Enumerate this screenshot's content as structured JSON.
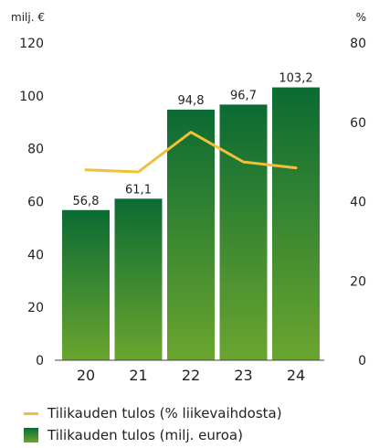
{
  "chart_data": {
    "type": "bar",
    "categories": [
      "20",
      "21",
      "22",
      "23",
      "24"
    ],
    "left_axis_label": "milj. €",
    "right_axis_label": "%",
    "left_ylim": [
      0,
      120
    ],
    "left_ticks": [
      0,
      20,
      40,
      60,
      80,
      100,
      120
    ],
    "right_ylim": [
      0,
      80
    ],
    "right_ticks": [
      0,
      20,
      40,
      60,
      80
    ],
    "series": [
      {
        "name": "Tilikauden tulos (milj. euroa)",
        "kind": "bar",
        "axis": "left",
        "values": [
          56.8,
          61.1,
          94.8,
          96.7,
          103.2
        ],
        "labels": [
          "56,8",
          "61,1",
          "94,8",
          "96,7",
          "103,2"
        ],
        "color_top": "#0b6b33",
        "color_bottom": "#6aa52f"
      },
      {
        "name": "Tilikauden tulos (% liikevaihdosta)",
        "kind": "line",
        "axis": "right",
        "values": [
          48.0,
          47.5,
          57.5,
          50.0,
          48.5
        ],
        "color": "#f2bf3a"
      }
    ],
    "grid": false
  }
}
